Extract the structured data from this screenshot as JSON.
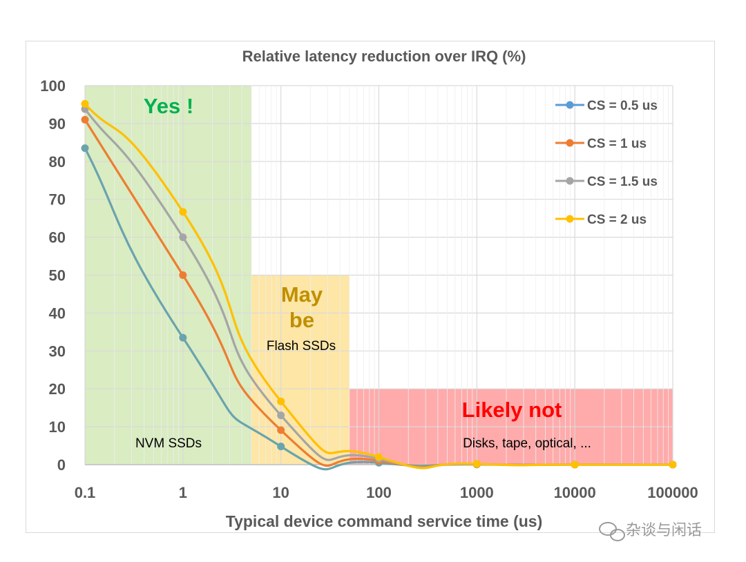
{
  "chart_data": {
    "type": "line",
    "title": "Relative latency reduction over IRQ (%)",
    "xlabel": "Typical device command service time (us)",
    "ylabel": "",
    "x_scale": "log",
    "x": [
      0.1,
      1,
      10,
      100,
      1000,
      10000,
      100000
    ],
    "x_tick_labels": [
      "0.1",
      "1",
      "10",
      "100",
      "1000",
      "10000",
      "100000"
    ],
    "ylim": [
      0,
      100
    ],
    "y_ticks": [
      0,
      10,
      20,
      30,
      40,
      50,
      60,
      70,
      80,
      90,
      100
    ],
    "grid": true,
    "legend_position": "top-right",
    "series": [
      {
        "name": "CS = 0.5 us",
        "color": "#5b9bd5",
        "line_color": "#6aa3ad",
        "values": [
          83.5,
          33.5,
          4.8,
          0.5,
          0.05,
          0,
          0
        ]
      },
      {
        "name": "CS = 1 us",
        "color": "#ed7d31",
        "line_color": "#ed7d31",
        "values": [
          91,
          50,
          9.1,
          1,
          0.1,
          0,
          0
        ]
      },
      {
        "name": "CS = 1.5 us",
        "color": "#a5a5a5",
        "line_color": "#a5a5a5",
        "values": [
          93.8,
          60,
          13,
          1.5,
          0.15,
          0,
          0
        ]
      },
      {
        "name": "CS = 2 us",
        "color": "#ffc000",
        "line_color": "#ffc000",
        "values": [
          95.2,
          66.7,
          16.7,
          2,
          0.2,
          0,
          0
        ]
      }
    ],
    "regions": [
      {
        "x_from": 0.1,
        "x_to": 5,
        "y_to": 100,
        "color": "#d9ecc2",
        "heading": "Yes !",
        "note": "NVM SSDs",
        "heading_color": "#00b050"
      },
      {
        "x_from": 5,
        "x_to": 50,
        "y_to": 50,
        "color": "#fde6a6",
        "heading": "May be",
        "heading_lines": [
          "May",
          "be"
        ],
        "note": "Flash SSDs",
        "heading_color": "#bf8f00"
      },
      {
        "x_from": 50,
        "x_to": 100000,
        "y_to": 20,
        "color": "#ffabab",
        "heading": "Likely not",
        "note": "Disks, tape, optical, ...",
        "heading_color": "#ff0000"
      }
    ]
  },
  "watermark": "杂谈与闲话"
}
